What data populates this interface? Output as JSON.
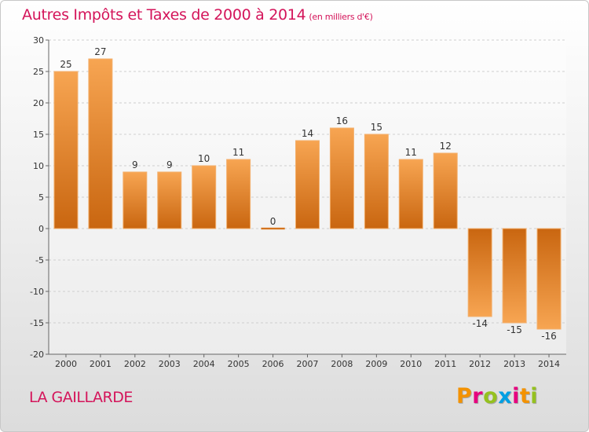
{
  "title": "Autres Impôts et Taxes de 2000 à 2014",
  "subtitle": "(en milliers d'€)",
  "commune": "LA GAILLARDE",
  "logo": {
    "letters": [
      "P",
      "r",
      "o",
      "x",
      "i",
      "t",
      "i"
    ],
    "colors": [
      "#f39200",
      "#e6007e",
      "#95c11f",
      "#009fe3",
      "#e6007e",
      "#f39200",
      "#95c11f"
    ]
  },
  "colors": {
    "bar_light": "#f7a552",
    "bar_dark": "#c96610",
    "title": "#d4145a"
  },
  "chart_data": {
    "type": "bar",
    "categories": [
      "2000",
      "2001",
      "2002",
      "2003",
      "2004",
      "2005",
      "2006",
      "2007",
      "2008",
      "2009",
      "2010",
      "2011",
      "2012",
      "2013",
      "2014"
    ],
    "values": [
      25,
      27,
      9,
      9,
      10,
      11,
      0,
      14,
      16,
      15,
      11,
      12,
      -14,
      -15,
      -16
    ],
    "value_labels": [
      "25",
      "27",
      "9",
      "9",
      "10",
      "11",
      "0",
      "14",
      "16",
      "15",
      "11",
      "12",
      "-14",
      "-15",
      "-16"
    ],
    "ylim": [
      -20,
      30
    ],
    "yticks": [
      30,
      25,
      20,
      15,
      10,
      5,
      0,
      -5,
      -10,
      -15,
      -20
    ],
    "ytick_labels": [
      "30",
      "25",
      "20",
      "15",
      "10",
      "5",
      "0",
      "-5",
      "-10",
      "-15",
      "-20"
    ],
    "grid": true,
    "xlabel": "",
    "ylabel": ""
  }
}
